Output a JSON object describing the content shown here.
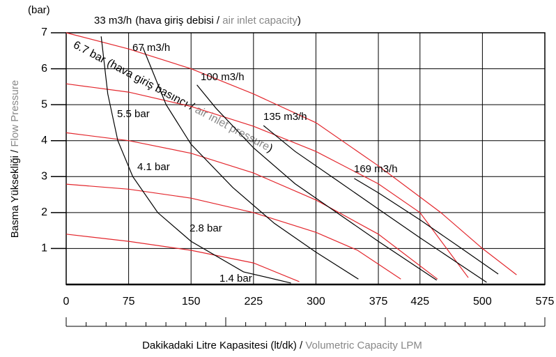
{
  "chart_data": {
    "type": "line",
    "y_unit": "(bar)",
    "capacity_note": [
      "(hava giriş debisi / ",
      "air inlet capacity",
      ")"
    ],
    "pressure_note": [
      "(hava giriş basıncı / ",
      "air inlet pressure",
      ")"
    ],
    "y_label": [
      "Basma Yüksekliği / ",
      "Flow Pressure"
    ],
    "x_label": [
      "Dakikadaki Litre Kapasitesi (lt/dk) / ",
      "Volumetric Capacity LPM"
    ],
    "xlim": [
      0,
      575
    ],
    "ylim": [
      0,
      7
    ],
    "xticks": [
      0,
      75,
      150,
      225,
      300,
      375,
      425,
      500,
      575
    ],
    "yticks": [
      1,
      2,
      3,
      4,
      5,
      6,
      7
    ],
    "grid": true,
    "series": [
      {
        "name": "6.7 bar",
        "color": "#e3262c",
        "x": [
          0,
          75,
          150,
          225,
          300,
          375,
          450,
          500,
          541
        ],
        "values": [
          7.0,
          6.55,
          6.0,
          5.3,
          4.5,
          3.3,
          2.0,
          1.0,
          0.27
        ]
      },
      {
        "name": "5.5 bar",
        "color": "#e3262c",
        "x": [
          0,
          75,
          150,
          225,
          300,
          375,
          425,
          483
        ],
        "values": [
          5.58,
          5.35,
          4.95,
          4.4,
          3.7,
          2.8,
          2.0,
          0.19
        ]
      },
      {
        "name": "4.1 bar",
        "color": "#e3262c",
        "x": [
          0,
          75,
          150,
          225,
          300,
          375,
          446
        ],
        "values": [
          4.22,
          4.0,
          3.65,
          3.1,
          2.35,
          1.4,
          0.15
        ]
      },
      {
        "name": "2.8 bar",
        "color": "#e3262c",
        "x": [
          0,
          75,
          150,
          225,
          300,
          350,
          402
        ],
        "values": [
          2.79,
          2.65,
          2.4,
          2.0,
          1.45,
          0.95,
          0.15
        ]
      },
      {
        "name": "1.4 bar",
        "color": "#e3262c",
        "x": [
          0,
          75,
          150,
          225,
          280
        ],
        "values": [
          1.4,
          1.2,
          0.95,
          0.6,
          0.08
        ]
      },
      {
        "name": "33 m3/h",
        "color": "#000000",
        "x": [
          42,
          50,
          62,
          80,
          110,
          150,
          213,
          270
        ],
        "values": [
          6.9,
          5.3,
          4.0,
          3.0,
          2.0,
          1.2,
          0.35,
          0.04
        ]
      },
      {
        "name": "67 m3/h",
        "color": "#000000",
        "x": [
          92,
          120,
          150,
          200,
          250,
          300,
          351
        ],
        "values": [
          6.6,
          5.0,
          3.9,
          2.7,
          1.7,
          0.9,
          0.15
        ]
      },
      {
        "name": "100 m3/h",
        "color": "#000000",
        "x": [
          157,
          180,
          225,
          275,
          325,
          375,
          445
        ],
        "values": [
          5.55,
          4.9,
          3.8,
          2.8,
          2.0,
          1.2,
          0.12
        ]
      },
      {
        "name": "135 m3/h",
        "color": "#000000",
        "x": [
          237,
          275,
          325,
          375,
          425,
          505
        ],
        "values": [
          4.42,
          3.7,
          2.9,
          2.1,
          1.3,
          0.06
        ]
      },
      {
        "name": "169 m3/h",
        "color": "#000000",
        "x": [
          346,
          375,
          425,
          475,
          519
        ],
        "values": [
          2.95,
          2.55,
          1.8,
          1.0,
          0.29
        ]
      }
    ]
  }
}
